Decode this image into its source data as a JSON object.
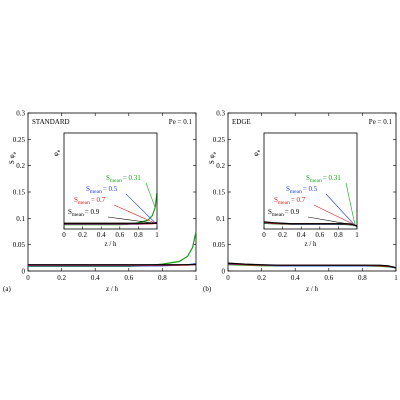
{
  "chart_data": [
    {
      "type": "line",
      "panel_label": "(a)",
      "annotation": "STANDARD",
      "parameter": "Pe = 0.1",
      "xlabel": "z / h",
      "ylabel": "S φ",
      "ylabel_sub": "e",
      "xlim": [
        0,
        1
      ],
      "xticks": [
        0,
        0.2,
        0.4,
        0.6,
        0.8,
        1
      ],
      "ylim": [
        0,
        0.3
      ],
      "yticks": [
        0,
        0.05,
        0.1,
        0.15,
        0.2,
        0.25,
        0.3
      ],
      "x": [
        0,
        0.1,
        0.2,
        0.3,
        0.4,
        0.5,
        0.6,
        0.7,
        0.8,
        0.9,
        0.95,
        0.98,
        1
      ],
      "series": [
        {
          "name": "S",
          "name_sub": "mean",
          "name_value": "= 0.31",
          "color": "#1a9e1a",
          "values": [
            0.009,
            0.009,
            0.009,
            0.009,
            0.009,
            0.009,
            0.009,
            0.01,
            0.013,
            0.018,
            0.028,
            0.045,
            0.075
          ]
        },
        {
          "name": "S",
          "name_sub": "mean",
          "name_value": "= 0.5",
          "color": "#1f3fd6",
          "values": [
            0.01,
            0.01,
            0.01,
            0.01,
            0.01,
            0.01,
            0.01,
            0.01,
            0.01,
            0.011,
            0.012,
            0.013,
            0.014
          ]
        },
        {
          "name": "S",
          "name_sub": "mean",
          "name_value": "= 0.7",
          "color": "#d42020",
          "values": [
            0.011,
            0.011,
            0.011,
            0.011,
            0.011,
            0.011,
            0.011,
            0.011,
            0.011,
            0.011,
            0.011,
            0.012,
            0.012
          ]
        },
        {
          "name": "S",
          "name_sub": "mean",
          "name_value": "= 0.9",
          "color": "#000000",
          "values": [
            0.012,
            0.012,
            0.012,
            0.012,
            0.012,
            0.012,
            0.012,
            0.012,
            0.012,
            0.012,
            0.012,
            0.012,
            0.012
          ]
        }
      ],
      "inset": {
        "xlabel": "z / h",
        "ylabel": "φ",
        "ylabel_sub": "e",
        "xlim": [
          0,
          1
        ],
        "xticks": [
          0,
          0.2,
          0.4,
          0.6,
          0.8,
          1
        ],
        "ylim": [
          0,
          0.2
        ]
      }
    },
    {
      "type": "line",
      "panel_label": "(b)",
      "annotation": "EDGE",
      "parameter": "Pe = 0.1",
      "xlabel": "z / h",
      "ylabel": "S φ",
      "ylabel_sub": "e",
      "xlim": [
        0,
        1
      ],
      "xticks": [
        0,
        0.2,
        0.4,
        0.6,
        0.8,
        1
      ],
      "ylim": [
        0,
        0.3
      ],
      "yticks": [
        0,
        0.05,
        0.1,
        0.15,
        0.2,
        0.25,
        0.3
      ],
      "x": [
        0,
        0.1,
        0.2,
        0.3,
        0.4,
        0.5,
        0.6,
        0.7,
        0.8,
        0.9,
        0.95,
        0.98,
        1
      ],
      "series": [
        {
          "name": "S",
          "name_sub": "mean",
          "name_value": "= 0.31",
          "color": "#1a9e1a",
          "values": [
            0.012,
            0.011,
            0.01,
            0.01,
            0.01,
            0.01,
            0.01,
            0.01,
            0.01,
            0.009,
            0.008,
            0.007,
            0.005
          ]
        },
        {
          "name": "S",
          "name_sub": "mean",
          "name_value": "= 0.5",
          "color": "#1f3fd6",
          "values": [
            0.013,
            0.012,
            0.011,
            0.01,
            0.01,
            0.01,
            0.01,
            0.01,
            0.01,
            0.01,
            0.009,
            0.007,
            0.006
          ]
        },
        {
          "name": "S",
          "name_sub": "mean",
          "name_value": "= 0.7",
          "color": "#d42020",
          "values": [
            0.014,
            0.012,
            0.011,
            0.011,
            0.011,
            0.011,
            0.011,
            0.011,
            0.011,
            0.01,
            0.009,
            0.008,
            0.006
          ]
        },
        {
          "name": "S",
          "name_sub": "mean",
          "name_value": "= 0.9",
          "color": "#000000",
          "values": [
            0.015,
            0.013,
            0.012,
            0.011,
            0.011,
            0.011,
            0.011,
            0.011,
            0.011,
            0.011,
            0.01,
            0.008,
            0.006
          ]
        }
      ],
      "inset": {
        "xlabel": "z / h",
        "ylabel": "φ",
        "ylabel_sub": "e",
        "xlim": [
          0,
          1
        ],
        "xticks": [
          0,
          0.2,
          0.4,
          0.6,
          0.8,
          1
        ],
        "ylim": [
          0,
          0.2
        ]
      }
    }
  ]
}
